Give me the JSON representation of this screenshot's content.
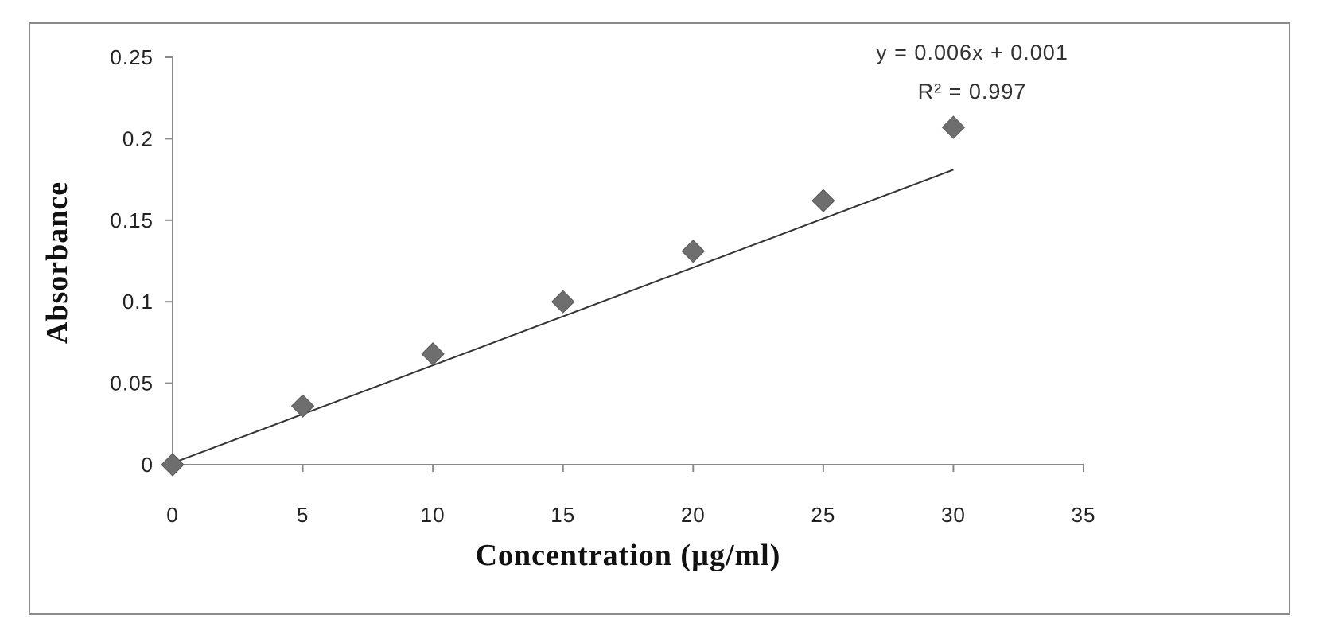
{
  "chart_data": {
    "type": "scatter",
    "title": "",
    "xlabel": "Concentration (µg/ml)",
    "ylabel": "Absorbance",
    "xlim": [
      0,
      35
    ],
    "ylim": [
      0,
      0.25
    ],
    "x_ticks": [
      "0",
      "5",
      "10",
      "15",
      "20",
      "25",
      "30",
      "35"
    ],
    "y_ticks": [
      "0",
      "0.05",
      "0.1",
      "0.15",
      "0.2",
      "0.25"
    ],
    "grid": false,
    "legend": "none",
    "series": [
      {
        "marker": "diamond",
        "color": "#6e6e6e",
        "x": [
          0,
          5,
          10,
          15,
          20,
          25,
          30
        ],
        "y": [
          0,
          0.036,
          0.068,
          0.1,
          0.131,
          0.162,
          0.207
        ]
      }
    ],
    "trendline": {
      "type": "linear",
      "slope": 0.006,
      "intercept": 0.001,
      "x_range": [
        0,
        30
      ],
      "color": "#333333"
    },
    "annotations": {
      "equation": "y = 0.006x + 0.001",
      "r_squared": "R² = 0.997"
    }
  }
}
